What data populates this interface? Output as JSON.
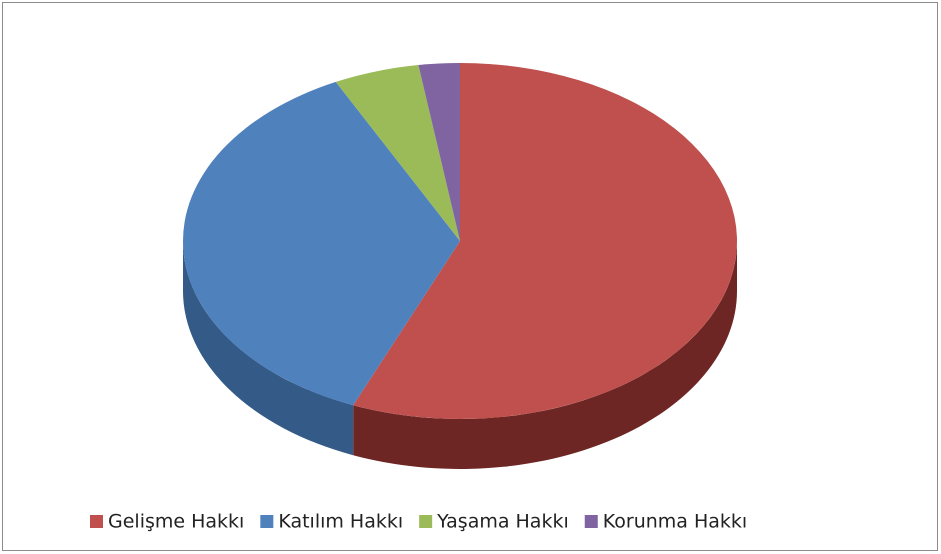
{
  "chart_data": {
    "type": "pie3d",
    "categories": [
      "Gelişme Hakkı",
      "Katılım Hakkı",
      "Yaşama Hakkı",
      "Korunma Hakkı"
    ],
    "values": [
      56.3,
      36.3,
      5.0,
      2.4
    ],
    "colors": [
      "#c0504d",
      "#4f81bd",
      "#9bbb59",
      "#8064a2"
    ],
    "side_colors": [
      "#6e2624",
      "#345a87",
      "#6c8a3a",
      "#5a4578"
    ],
    "legend": "bottom"
  }
}
